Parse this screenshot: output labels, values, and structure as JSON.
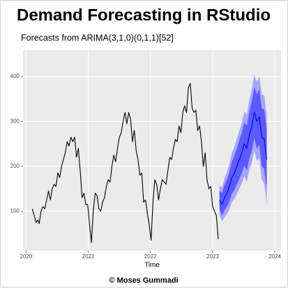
{
  "chart_data": {
    "type": "line",
    "title": "Demand Forecasting in RStudio",
    "subtitle": "Forecasts from ARIMA(3,1,0)(0,1,1)[52]",
    "x_label": "Time",
    "footer": "© Moses Gummadi",
    "xlim": [
      2019.95,
      2024.1
    ],
    "ylim": [
      12,
      459
    ],
    "xticks": [
      2020,
      2021,
      2022,
      2023,
      2024
    ],
    "yticks": [
      100,
      200,
      300,
      400
    ],
    "grid": true,
    "series": [
      {
        "color": "#000000",
        "x": [
          2020.1,
          2020.13,
          2020.16,
          2020.19,
          2020.21,
          2020.24,
          2020.27,
          2020.3,
          2020.33,
          2020.36,
          2020.39,
          2020.42,
          2020.45,
          2020.48,
          2020.51,
          2020.54,
          2020.57,
          2020.6,
          2020.63,
          2020.66,
          2020.69,
          2020.72,
          2020.75,
          2020.78,
          2020.81,
          2020.84,
          2020.87,
          2020.9,
          2020.93,
          2020.96,
          2020.99,
          2021.02,
          2021.05,
          2021.08,
          2021.11,
          2021.14,
          2021.17,
          2021.2,
          2021.23,
          2021.26,
          2021.29,
          2021.32,
          2021.35,
          2021.38,
          2021.41,
          2021.44,
          2021.47,
          2021.5,
          2021.53,
          2021.56,
          2021.59,
          2021.62,
          2021.65,
          2021.68,
          2021.71,
          2021.74,
          2021.77,
          2021.8,
          2021.83,
          2021.86,
          2021.89,
          2021.92,
          2021.95,
          2021.98,
          2022.01,
          2022.04,
          2022.07,
          2022.1,
          2022.13,
          2022.16,
          2022.19,
          2022.22,
          2022.25,
          2022.28,
          2022.31,
          2022.34,
          2022.37,
          2022.4,
          2022.43,
          2022.46,
          2022.49,
          2022.52,
          2022.55,
          2022.58,
          2022.61,
          2022.64,
          2022.67,
          2022.7,
          2022.73,
          2022.76,
          2022.79,
          2022.82,
          2022.85,
          2022.88,
          2022.91,
          2022.94,
          2022.97,
          2023.0,
          2023.03,
          2023.06,
          2023.09
        ],
        "values": [
          105,
          90,
          75,
          80,
          72,
          100,
          110,
          105,
          125,
          145,
          125,
          150,
          160,
          155,
          185,
          175,
          200,
          215,
          230,
          255,
          245,
          265,
          255,
          265,
          220,
          240,
          190,
          130,
          140,
          115,
          115,
          70,
          30,
          100,
          140,
          135,
          105,
          100,
          120,
          130,
          155,
          170,
          165,
          200,
          225,
          210,
          240,
          265,
          275,
          300,
          320,
          295,
          320,
          305,
          255,
          280,
          235,
          215,
          180,
          185,
          120,
          125,
          95,
          70,
          35,
          120,
          170,
          160,
          125,
          150,
          170,
          165,
          160,
          190,
          220,
          215,
          240,
          260,
          255,
          290,
          275,
          320,
          335,
          320,
          375,
          385,
          330,
          320,
          325,
          280,
          290,
          255,
          200,
          230,
          170,
          150,
          155,
          110,
          100,
          90,
          38
        ]
      },
      {
        "color": "#0000e6",
        "x": [
          2023.11,
          2023.15,
          2023.19,
          2023.23,
          2023.27,
          2023.31,
          2023.35,
          2023.39,
          2023.43,
          2023.47,
          2023.51,
          2023.55,
          2023.59,
          2023.63,
          2023.67,
          2023.71,
          2023.75,
          2023.79,
          2023.83,
          2023.87
        ],
        "values": [
          125,
          115,
          130,
          140,
          155,
          175,
          185,
          200,
          215,
          230,
          250,
          240,
          270,
          290,
          320,
          300,
          310,
          265,
          260,
          215
        ]
      }
    ],
    "bands": [
      {
        "color": "#a6a6ff",
        "lower": [
          93,
          77,
          87,
          93,
          104,
          120,
          127,
          138,
          150,
          162,
          178,
          165,
          192,
          208,
          235,
          212,
          218,
          170,
          162,
          115
        ],
        "upper": [
          157,
          153,
          173,
          187,
          206,
          230,
          243,
          262,
          280,
          298,
          322,
          315,
          348,
          372,
          405,
          388,
          402,
          360,
          358,
          315
        ]
      },
      {
        "color": "#5a5aff",
        "lower": [
          105,
          90,
          102,
          110,
          122,
          139,
          147,
          160,
          172,
          185,
          202,
          190,
          218,
          235,
          263,
          240,
          248,
          201,
          194,
          147
        ],
        "upper": [
          145,
          140,
          158,
          170,
          188,
          211,
          223,
          240,
          258,
          275,
          298,
          290,
          322,
          345,
          377,
          360,
          372,
          329,
          326,
          283
        ]
      }
    ]
  }
}
